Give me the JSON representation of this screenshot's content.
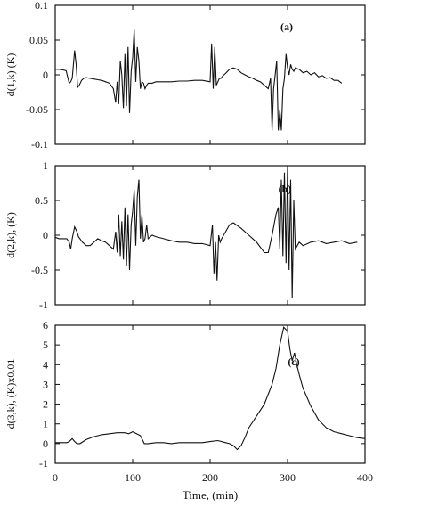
{
  "chart_data": [
    {
      "type": "line",
      "panel_label": "(a)",
      "ylabel": "d(1,k)  (K)",
      "xlim": [
        0,
        400
      ],
      "ylim": [
        -0.1,
        0.1
      ],
      "yticks": [
        -0.1,
        -0.05,
        0,
        0.05,
        0.1
      ],
      "ytick_labels": [
        "-0.1",
        "-0.05",
        "0",
        "0.05",
        "0.1"
      ],
      "xticks": [
        0,
        100,
        200,
        300,
        400
      ],
      "grid": false,
      "series": [
        {
          "x": [
            0,
            5,
            10,
            14,
            18,
            20,
            22,
            25,
            27,
            29,
            31,
            34,
            37,
            40,
            45,
            50,
            55,
            60,
            65,
            70,
            75,
            78,
            80,
            82,
            84,
            86,
            88,
            90,
            92,
            94,
            96,
            98,
            100,
            102,
            104,
            106,
            108,
            110,
            112,
            114,
            116,
            118,
            120,
            125,
            130,
            140,
            150,
            160,
            170,
            180,
            190,
            200,
            202,
            204,
            206,
            208,
            210,
            212,
            214,
            216,
            220,
            225,
            230,
            235,
            240,
            245,
            250,
            255,
            260,
            265,
            270,
            275,
            278,
            280,
            282,
            284,
            286,
            288,
            290,
            292,
            294,
            296,
            298,
            300,
            302,
            304,
            306,
            308,
            310,
            315,
            320,
            325,
            330,
            335,
            340,
            345,
            350,
            355,
            360,
            365,
            370
          ],
          "y": [
            0.008,
            0.008,
            0.007,
            0.006,
            -0.012,
            -0.01,
            -0.005,
            0.035,
            0.015,
            -0.018,
            -0.015,
            -0.008,
            -0.005,
            -0.004,
            -0.005,
            -0.006,
            -0.007,
            -0.008,
            -0.01,
            -0.012,
            -0.02,
            -0.04,
            -0.01,
            -0.042,
            0.02,
            0.0,
            -0.048,
            0.03,
            -0.045,
            0.04,
            -0.055,
            0.005,
            0.025,
            0.065,
            -0.01,
            0.04,
            0.02,
            -0.02,
            -0.01,
            -0.012,
            -0.02,
            -0.015,
            -0.012,
            -0.012,
            -0.01,
            -0.01,
            -0.01,
            -0.009,
            -0.009,
            -0.008,
            -0.008,
            -0.01,
            0.045,
            -0.02,
            0.04,
            -0.015,
            -0.01,
            -0.005,
            -0.005,
            -0.002,
            0.002,
            0.008,
            0.01,
            0.008,
            0.003,
            0.0,
            -0.003,
            -0.005,
            -0.008,
            -0.01,
            -0.015,
            -0.02,
            -0.005,
            -0.08,
            -0.02,
            0.0,
            0.02,
            -0.08,
            -0.05,
            -0.08,
            -0.02,
            -0.005,
            0.03,
            0.01,
            0.0,
            0.015,
            0.008,
            0.005,
            0.01,
            0.008,
            0.003,
            0.005,
            0.0,
            0.003,
            -0.003,
            -0.001,
            -0.005,
            -0.004,
            -0.008,
            -0.008,
            -0.012
          ]
        }
      ]
    },
    {
      "type": "line",
      "panel_label": "(b)",
      "ylabel": "d(2,k),  (K)",
      "xlim": [
        0,
        400
      ],
      "ylim": [
        -1,
        1
      ],
      "yticks": [
        -1,
        -0.5,
        0,
        0.5,
        1
      ],
      "ytick_labels": [
        "-1",
        "-0.5",
        "0",
        "0.5",
        "1"
      ],
      "xticks": [
        0,
        100,
        200,
        300,
        400
      ],
      "grid": false,
      "series": [
        {
          "x": [
            0,
            5,
            10,
            15,
            18,
            20,
            22,
            25,
            28,
            30,
            35,
            40,
            45,
            50,
            55,
            60,
            65,
            70,
            75,
            78,
            80,
            82,
            84,
            86,
            88,
            90,
            92,
            94,
            96,
            98,
            100,
            102,
            104,
            106,
            108,
            110,
            112,
            114,
            116,
            118,
            120,
            125,
            130,
            140,
            150,
            160,
            170,
            180,
            190,
            200,
            203,
            205,
            207,
            209,
            211,
            213,
            215,
            220,
            225,
            230,
            240,
            250,
            260,
            270,
            275,
            280,
            285,
            288,
            290,
            292,
            294,
            296,
            298,
            300,
            302,
            304,
            306,
            308,
            310,
            315,
            320,
            330,
            340,
            350,
            360,
            370,
            380,
            390
          ],
          "y": [
            -0.03,
            -0.05,
            -0.05,
            -0.05,
            -0.1,
            -0.2,
            -0.05,
            0.12,
            0.05,
            -0.02,
            -0.1,
            -0.15,
            -0.15,
            -0.1,
            -0.05,
            -0.08,
            -0.1,
            -0.15,
            -0.2,
            0.05,
            -0.25,
            0.3,
            -0.3,
            0.2,
            -0.35,
            0.4,
            -0.45,
            0.3,
            -0.5,
            0.15,
            0.35,
            0.65,
            -0.15,
            0.55,
            0.8,
            -0.05,
            0.3,
            -0.1,
            -0.05,
            0.15,
            -0.05,
            0.0,
            -0.02,
            -0.05,
            -0.08,
            -0.1,
            -0.1,
            -0.12,
            -0.12,
            -0.15,
            0.15,
            -0.55,
            -0.1,
            -0.65,
            0.0,
            -0.1,
            -0.05,
            0.05,
            0.15,
            0.18,
            0.1,
            0.0,
            -0.1,
            -0.25,
            -0.25,
            0.0,
            0.3,
            0.4,
            -0.2,
            0.8,
            -0.3,
            0.9,
            -0.4,
            1.0,
            -0.5,
            0.8,
            -0.9,
            0.5,
            -0.2,
            -0.1,
            -0.15,
            -0.1,
            -0.08,
            -0.12,
            -0.1,
            -0.08,
            -0.12,
            -0.1
          ]
        }
      ]
    },
    {
      "type": "line",
      "panel_label": "(c)",
      "ylabel": "d(3,k),   (K)x0.01",
      "xlabel": "Time,  (min)",
      "xlim": [
        0,
        400
      ],
      "ylim": [
        -1,
        6
      ],
      "yticks": [
        -1,
        0,
        1,
        2,
        3,
        4,
        5,
        6
      ],
      "ytick_labels": [
        "-1",
        "0",
        "1",
        "2",
        "3",
        "4",
        "5",
        "6"
      ],
      "xticks": [
        0,
        100,
        200,
        300,
        400
      ],
      "xtick_labels": [
        "0",
        "100",
        "200",
        "300",
        "400"
      ],
      "grid": false,
      "series": [
        {
          "x": [
            0,
            10,
            15,
            18,
            22,
            25,
            28,
            32,
            40,
            50,
            60,
            70,
            80,
            90,
            95,
            100,
            105,
            110,
            115,
            120,
            130,
            140,
            150,
            160,
            170,
            180,
            190,
            200,
            210,
            220,
            225,
            230,
            235,
            240,
            245,
            250,
            260,
            270,
            280,
            285,
            290,
            295,
            300,
            303,
            306,
            309,
            312,
            315,
            320,
            330,
            340,
            350,
            360,
            370,
            380,
            390,
            400
          ],
          "y": [
            0.05,
            0.05,
            0.05,
            0.1,
            0.25,
            0.1,
            0.0,
            0.0,
            0.2,
            0.35,
            0.45,
            0.5,
            0.55,
            0.55,
            0.5,
            0.6,
            0.5,
            0.4,
            0.0,
            0.0,
            0.05,
            0.05,
            0.0,
            0.05,
            0.05,
            0.05,
            0.05,
            0.1,
            0.15,
            0.05,
            0.0,
            -0.1,
            -0.3,
            -0.1,
            0.3,
            0.8,
            1.4,
            2.0,
            3.0,
            3.8,
            5.0,
            5.9,
            5.7,
            4.8,
            4.2,
            4.6,
            4.0,
            3.5,
            2.8,
            1.9,
            1.2,
            0.8,
            0.6,
            0.5,
            0.4,
            0.3,
            0.25
          ]
        }
      ]
    }
  ]
}
